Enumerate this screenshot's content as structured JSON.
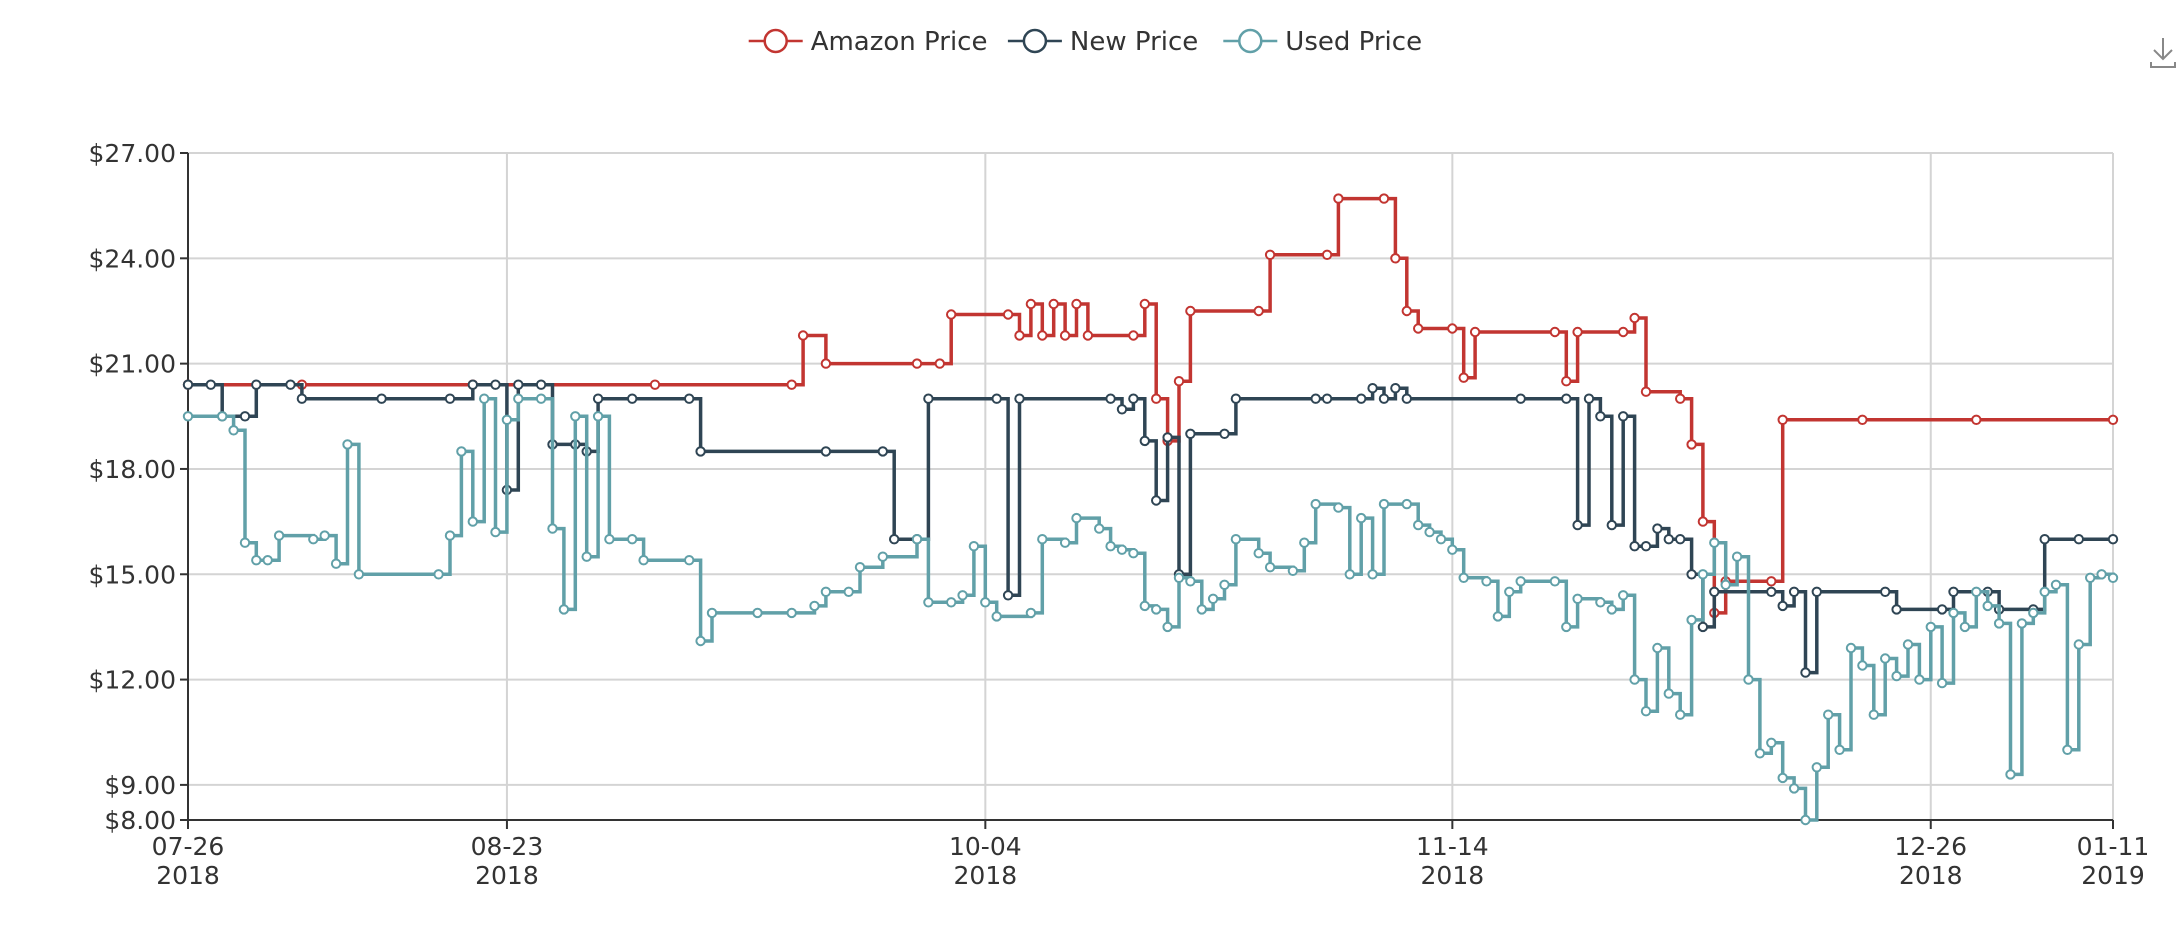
{
  "chart_data": {
    "type": "line",
    "step": true,
    "title": "",
    "xlabel": "",
    "ylabel": "",
    "legend_position": "top-center",
    "grid": true,
    "xlim": [
      "2018-07-26",
      "2019-01-11"
    ],
    "ylim": [
      8,
      27
    ],
    "x_ticks": [
      {
        "date": "2018-07-26",
        "label": [
          "07-26",
          "2018"
        ]
      },
      {
        "date": "2018-08-23",
        "label": [
          "08-23",
          "2018"
        ]
      },
      {
        "date": "2018-10-04",
        "label": [
          "10-04",
          "2018"
        ]
      },
      {
        "date": "2018-11-14",
        "label": [
          "11-14",
          "2018"
        ]
      },
      {
        "date": "2018-12-26",
        "label": [
          "12-26",
          "2018"
        ]
      },
      {
        "date": "2019-01-11",
        "label": [
          "01-11",
          "2019"
        ]
      }
    ],
    "y_ticks": [
      {
        "value": 27,
        "label": "$27.00"
      },
      {
        "value": 24,
        "label": "$24.00"
      },
      {
        "value": 21,
        "label": "$21.00"
      },
      {
        "value": 18,
        "label": "$18.00"
      },
      {
        "value": 15,
        "label": "$15.00"
      },
      {
        "value": 12,
        "label": "$12.00"
      },
      {
        "value": 9,
        "label": "$9.00"
      },
      {
        "value": 8,
        "label": "$8.00"
      }
    ],
    "series": [
      {
        "name": "Amazon Price",
        "color": "#c23531",
        "points": [
          [
            "2018-07-26",
            20.4
          ],
          [
            "2018-08-05",
            20.4
          ],
          [
            "2018-08-20",
            20.4
          ],
          [
            "2018-09-05",
            20.4
          ],
          [
            "2018-09-17",
            20.4
          ],
          [
            "2018-09-18",
            21.8
          ],
          [
            "2018-09-20",
            21.0
          ],
          [
            "2018-09-28",
            21.0
          ],
          [
            "2018-09-30",
            21.0
          ],
          [
            "2018-10-01",
            22.4
          ],
          [
            "2018-10-06",
            22.4
          ],
          [
            "2018-10-07",
            21.8
          ],
          [
            "2018-10-08",
            22.7
          ],
          [
            "2018-10-09",
            21.8
          ],
          [
            "2018-10-10",
            22.7
          ],
          [
            "2018-10-11",
            21.8
          ],
          [
            "2018-10-12",
            22.7
          ],
          [
            "2018-10-13",
            21.8
          ],
          [
            "2018-10-17",
            21.8
          ],
          [
            "2018-10-18",
            22.7
          ],
          [
            "2018-10-19",
            20.0
          ],
          [
            "2018-10-20",
            18.8
          ],
          [
            "2018-10-21",
            20.5
          ],
          [
            "2018-10-22",
            22.5
          ],
          [
            "2018-10-28",
            22.5
          ],
          [
            "2018-10-29",
            24.1
          ],
          [
            "2018-11-03",
            24.1
          ],
          [
            "2018-11-04",
            25.7
          ],
          [
            "2018-11-08",
            25.7
          ],
          [
            "2018-11-09",
            24.0
          ],
          [
            "2018-11-10",
            22.5
          ],
          [
            "2018-11-11",
            22.0
          ],
          [
            "2018-11-14",
            22.0
          ],
          [
            "2018-11-15",
            20.6
          ],
          [
            "2018-11-16",
            21.9
          ],
          [
            "2018-11-23",
            21.9
          ],
          [
            "2018-11-24",
            20.5
          ],
          [
            "2018-11-25",
            21.9
          ],
          [
            "2018-11-29",
            21.9
          ],
          [
            "2018-11-30",
            22.3
          ],
          [
            "2018-12-01",
            20.2
          ],
          [
            "2018-12-04",
            20.0
          ],
          [
            "2018-12-05",
            18.7
          ],
          [
            "2018-12-06",
            16.5
          ],
          [
            "2018-12-07",
            13.9
          ],
          [
            "2018-12-08",
            14.8
          ],
          [
            "2018-12-12",
            14.8
          ],
          [
            "2018-12-13",
            19.4
          ],
          [
            "2018-12-20",
            19.4
          ],
          [
            "2018-12-30",
            19.4
          ],
          [
            "2019-01-11",
            19.4
          ]
        ]
      },
      {
        "name": "New Price",
        "color": "#2f4554",
        "points": [
          [
            "2018-07-26",
            20.4
          ],
          [
            "2018-07-28",
            20.4
          ],
          [
            "2018-07-29",
            19.5
          ],
          [
            "2018-07-31",
            19.5
          ],
          [
            "2018-08-01",
            20.4
          ],
          [
            "2018-08-04",
            20.4
          ],
          [
            "2018-08-05",
            20.0
          ],
          [
            "2018-08-12",
            20.0
          ],
          [
            "2018-08-18",
            20.0
          ],
          [
            "2018-08-20",
            20.4
          ],
          [
            "2018-08-22",
            20.4
          ],
          [
            "2018-08-23",
            17.4
          ],
          [
            "2018-08-24",
            20.4
          ],
          [
            "2018-08-26",
            20.4
          ],
          [
            "2018-08-27",
            18.7
          ],
          [
            "2018-08-29",
            18.7
          ],
          [
            "2018-08-30",
            18.5
          ],
          [
            "2018-08-31",
            20.0
          ],
          [
            "2018-09-03",
            20.0
          ],
          [
            "2018-09-08",
            20.0
          ],
          [
            "2018-09-09",
            18.5
          ],
          [
            "2018-09-20",
            18.5
          ],
          [
            "2018-09-25",
            18.5
          ],
          [
            "2018-09-26",
            16.0
          ],
          [
            "2018-09-28",
            16.0
          ],
          [
            "2018-09-29",
            20.0
          ],
          [
            "2018-10-05",
            20.0
          ],
          [
            "2018-10-06",
            14.4
          ],
          [
            "2018-10-07",
            20.0
          ],
          [
            "2018-10-15",
            20.0
          ],
          [
            "2018-10-16",
            19.7
          ],
          [
            "2018-10-17",
            20.0
          ],
          [
            "2018-10-18",
            18.8
          ],
          [
            "2018-10-19",
            17.1
          ],
          [
            "2018-10-20",
            18.9
          ],
          [
            "2018-10-21",
            15.0
          ],
          [
            "2018-10-22",
            19.0
          ],
          [
            "2018-10-25",
            19.0
          ],
          [
            "2018-10-26",
            20.0
          ],
          [
            "2018-11-02",
            20.0
          ],
          [
            "2018-11-03",
            20.0
          ],
          [
            "2018-11-06",
            20.0
          ],
          [
            "2018-11-07",
            20.3
          ],
          [
            "2018-11-08",
            20.0
          ],
          [
            "2018-11-09",
            20.3
          ],
          [
            "2018-11-10",
            20.0
          ],
          [
            "2018-11-20",
            20.0
          ],
          [
            "2018-11-24",
            20.0
          ],
          [
            "2018-11-25",
            16.4
          ],
          [
            "2018-11-26",
            20.0
          ],
          [
            "2018-11-27",
            19.5
          ],
          [
            "2018-11-28",
            16.4
          ],
          [
            "2018-11-29",
            19.5
          ],
          [
            "2018-11-30",
            15.8
          ],
          [
            "2018-12-01",
            15.8
          ],
          [
            "2018-12-02",
            16.3
          ],
          [
            "2018-12-03",
            16.0
          ],
          [
            "2018-12-04",
            16.0
          ],
          [
            "2018-12-05",
            15.0
          ],
          [
            "2018-12-06",
            13.5
          ],
          [
            "2018-12-07",
            14.5
          ],
          [
            "2018-12-12",
            14.5
          ],
          [
            "2018-12-13",
            14.1
          ],
          [
            "2018-12-14",
            14.5
          ],
          [
            "2018-12-15",
            12.2
          ],
          [
            "2018-12-16",
            14.5
          ],
          [
            "2018-12-22",
            14.5
          ],
          [
            "2018-12-23",
            14.0
          ],
          [
            "2018-12-27",
            14.0
          ],
          [
            "2018-12-28",
            14.5
          ],
          [
            "2018-12-31",
            14.5
          ],
          [
            "2019-01-01",
            14.0
          ],
          [
            "2019-01-04",
            14.0
          ],
          [
            "2019-01-05",
            16.0
          ],
          [
            "2019-01-08",
            16.0
          ],
          [
            "2019-01-11",
            16.0
          ]
        ]
      },
      {
        "name": "Used Price",
        "color": "#61a0a8",
        "points": [
          [
            "2018-07-26",
            19.5
          ],
          [
            "2018-07-29",
            19.5
          ],
          [
            "2018-07-30",
            19.1
          ],
          [
            "2018-07-31",
            15.9
          ],
          [
            "2018-08-01",
            15.4
          ],
          [
            "2018-08-02",
            15.4
          ],
          [
            "2018-08-03",
            16.1
          ],
          [
            "2018-08-06",
            16.0
          ],
          [
            "2018-08-07",
            16.1
          ],
          [
            "2018-08-08",
            15.3
          ],
          [
            "2018-08-09",
            18.7
          ],
          [
            "2018-08-10",
            15.0
          ],
          [
            "2018-08-17",
            15.0
          ],
          [
            "2018-08-18",
            16.1
          ],
          [
            "2018-08-19",
            18.5
          ],
          [
            "2018-08-20",
            16.5
          ],
          [
            "2018-08-21",
            20.0
          ],
          [
            "2018-08-22",
            16.2
          ],
          [
            "2018-08-23",
            19.4
          ],
          [
            "2018-08-24",
            20.0
          ],
          [
            "2018-08-26",
            20.0
          ],
          [
            "2018-08-27",
            16.3
          ],
          [
            "2018-08-28",
            14.0
          ],
          [
            "2018-08-29",
            19.5
          ],
          [
            "2018-08-30",
            15.5
          ],
          [
            "2018-08-31",
            19.5
          ],
          [
            "2018-09-01",
            16.0
          ],
          [
            "2018-09-03",
            16.0
          ],
          [
            "2018-09-04",
            15.4
          ],
          [
            "2018-09-08",
            15.4
          ],
          [
            "2018-09-09",
            13.1
          ],
          [
            "2018-09-10",
            13.9
          ],
          [
            "2018-09-14",
            13.9
          ],
          [
            "2018-09-17",
            13.9
          ],
          [
            "2018-09-19",
            14.1
          ],
          [
            "2018-09-20",
            14.5
          ],
          [
            "2018-09-22",
            14.5
          ],
          [
            "2018-09-23",
            15.2
          ],
          [
            "2018-09-25",
            15.5
          ],
          [
            "2018-09-28",
            16.0
          ],
          [
            "2018-09-29",
            14.2
          ],
          [
            "2018-10-01",
            14.2
          ],
          [
            "2018-10-02",
            14.4
          ],
          [
            "2018-10-03",
            15.8
          ],
          [
            "2018-10-04",
            14.2
          ],
          [
            "2018-10-05",
            13.8
          ],
          [
            "2018-10-08",
            13.9
          ],
          [
            "2018-10-09",
            16.0
          ],
          [
            "2018-10-11",
            15.9
          ],
          [
            "2018-10-12",
            16.6
          ],
          [
            "2018-10-14",
            16.3
          ],
          [
            "2018-10-15",
            15.8
          ],
          [
            "2018-10-16",
            15.7
          ],
          [
            "2018-10-17",
            15.6
          ],
          [
            "2018-10-18",
            14.1
          ],
          [
            "2018-10-19",
            14.0
          ],
          [
            "2018-10-20",
            13.5
          ],
          [
            "2018-10-21",
            14.9
          ],
          [
            "2018-10-22",
            14.8
          ],
          [
            "2018-10-23",
            14.0
          ],
          [
            "2018-10-24",
            14.3
          ],
          [
            "2018-10-25",
            14.7
          ],
          [
            "2018-10-26",
            16.0
          ],
          [
            "2018-10-28",
            15.6
          ],
          [
            "2018-10-29",
            15.2
          ],
          [
            "2018-10-31",
            15.1
          ],
          [
            "2018-11-01",
            15.9
          ],
          [
            "2018-11-02",
            17.0
          ],
          [
            "2018-11-04",
            16.9
          ],
          [
            "2018-11-05",
            15.0
          ],
          [
            "2018-11-06",
            16.6
          ],
          [
            "2018-11-07",
            15.0
          ],
          [
            "2018-11-08",
            17.0
          ],
          [
            "2018-11-10",
            17.0
          ],
          [
            "2018-11-11",
            16.4
          ],
          [
            "2018-11-12",
            16.2
          ],
          [
            "2018-11-13",
            16.0
          ],
          [
            "2018-11-14",
            15.7
          ],
          [
            "2018-11-15",
            14.9
          ],
          [
            "2018-11-17",
            14.8
          ],
          [
            "2018-11-18",
            13.8
          ],
          [
            "2018-11-19",
            14.5
          ],
          [
            "2018-11-20",
            14.8
          ],
          [
            "2018-11-23",
            14.8
          ],
          [
            "2018-11-24",
            13.5
          ],
          [
            "2018-11-25",
            14.3
          ],
          [
            "2018-11-27",
            14.2
          ],
          [
            "2018-11-28",
            14.0
          ],
          [
            "2018-11-29",
            14.4
          ],
          [
            "2018-11-30",
            12.0
          ],
          [
            "2018-12-01",
            11.1
          ],
          [
            "2018-12-02",
            12.9
          ],
          [
            "2018-12-03",
            11.6
          ],
          [
            "2018-12-04",
            11.0
          ],
          [
            "2018-12-05",
            13.7
          ],
          [
            "2018-12-06",
            15.0
          ],
          [
            "2018-12-07",
            15.9
          ],
          [
            "2018-12-08",
            14.7
          ],
          [
            "2018-12-09",
            15.5
          ],
          [
            "2018-12-10",
            12.0
          ],
          [
            "2018-12-11",
            9.9
          ],
          [
            "2018-12-12",
            10.2
          ],
          [
            "2018-12-13",
            9.2
          ],
          [
            "2018-12-14",
            8.9
          ],
          [
            "2018-12-15",
            8.0
          ],
          [
            "2018-12-16",
            9.5
          ],
          [
            "2018-12-17",
            11.0
          ],
          [
            "2018-12-18",
            10.0
          ],
          [
            "2018-12-19",
            12.9
          ],
          [
            "2018-12-20",
            12.4
          ],
          [
            "2018-12-21",
            11.0
          ],
          [
            "2018-12-22",
            12.6
          ],
          [
            "2018-12-23",
            12.1
          ],
          [
            "2018-12-24",
            13.0
          ],
          [
            "2018-12-25",
            12.0
          ],
          [
            "2018-12-26",
            13.5
          ],
          [
            "2018-12-27",
            11.9
          ],
          [
            "2018-12-28",
            13.9
          ],
          [
            "2018-12-29",
            13.5
          ],
          [
            "2018-12-30",
            14.5
          ],
          [
            "2018-12-31",
            14.1
          ],
          [
            "2019-01-01",
            13.6
          ],
          [
            "2019-01-02",
            9.3
          ],
          [
            "2019-01-03",
            13.6
          ],
          [
            "2019-01-04",
            13.9
          ],
          [
            "2019-01-05",
            14.5
          ],
          [
            "2019-01-06",
            14.7
          ],
          [
            "2019-01-07",
            10.0
          ],
          [
            "2019-01-08",
            13.0
          ],
          [
            "2019-01-09",
            14.9
          ],
          [
            "2019-01-10",
            15.0
          ],
          [
            "2019-01-11",
            14.9
          ]
        ]
      }
    ]
  },
  "toolbar": {
    "download_icon": "download-icon"
  }
}
